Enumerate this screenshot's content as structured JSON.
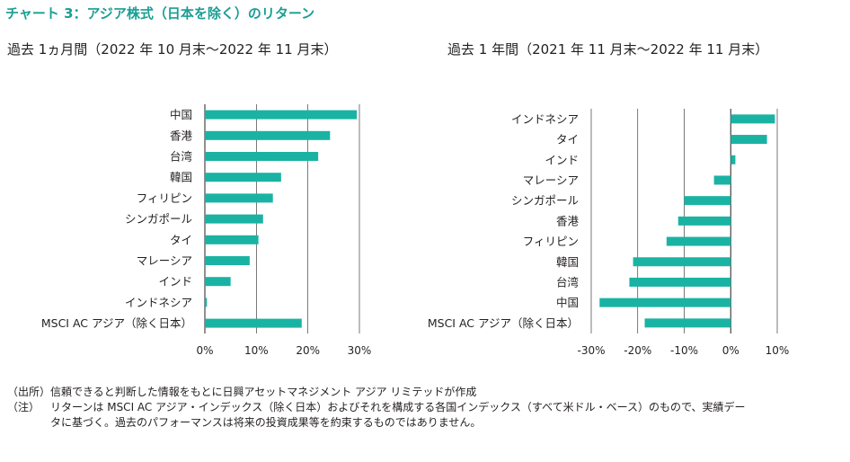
{
  "title": "チャート 3：アジア株式（日本を除く）のリターン",
  "left_subtitle": "過去 1ヵ月間（2022 年 10 月末～2022 年 11 月末）",
  "right_subtitle": "過去 1 年間（2021 年 11 月末～2022 年 11 月末）",
  "colors": {
    "bar": "#1ab3a3",
    "grid": "#231f20"
  },
  "chart_data": [
    {
      "type": "bar",
      "orientation": "horizontal",
      "categories": [
        "中国",
        "香港",
        "台湾",
        "韓国",
        "フィリピン",
        "シンガポール",
        "タイ",
        "マレーシア",
        "インド",
        "インドネシア",
        "MSCI AC アジア（除く日本）"
      ],
      "values": [
        29.5,
        24.3,
        22.0,
        14.8,
        13.2,
        11.3,
        10.4,
        8.7,
        5.0,
        0.4,
        18.8
      ],
      "xlim": [
        0,
        30
      ],
      "xticks": [
        "0%",
        "10%",
        "20%",
        "30%"
      ],
      "grid": "vertical"
    },
    {
      "type": "bar",
      "orientation": "horizontal",
      "categories": [
        "インドネシア",
        "タイ",
        "インド",
        "マレーシア",
        "シンガポール",
        "香港",
        "フィリピン",
        "韓国",
        "台湾",
        "中国",
        "MSCI AC アジア（除く日本）"
      ],
      "values": [
        9.5,
        7.8,
        1.0,
        -3.6,
        -10.0,
        -11.3,
        -13.8,
        -21.0,
        -21.8,
        -28.2,
        -18.5
      ],
      "xlim": [
        -30,
        10
      ],
      "xticks": [
        "-30%",
        "-20%",
        "-10%",
        "0%",
        "10%"
      ],
      "grid": "vertical"
    }
  ],
  "notes": [
    {
      "label": "（出所）",
      "text": "信頼できると判断した情報をもとに日興アセットマネジメント アジア リミテッドが作成"
    },
    {
      "label": "（注）",
      "text": "リターンは MSCI AC アジア・インデックス（除く日本）およびそれを構成する各国インデックス（すべて米ドル・ベース）のもので、実績デー"
    }
  ],
  "note_continuation": "タに基づく。過去のパフォーマンスは将来の投資成果等を約束するものではありません。"
}
